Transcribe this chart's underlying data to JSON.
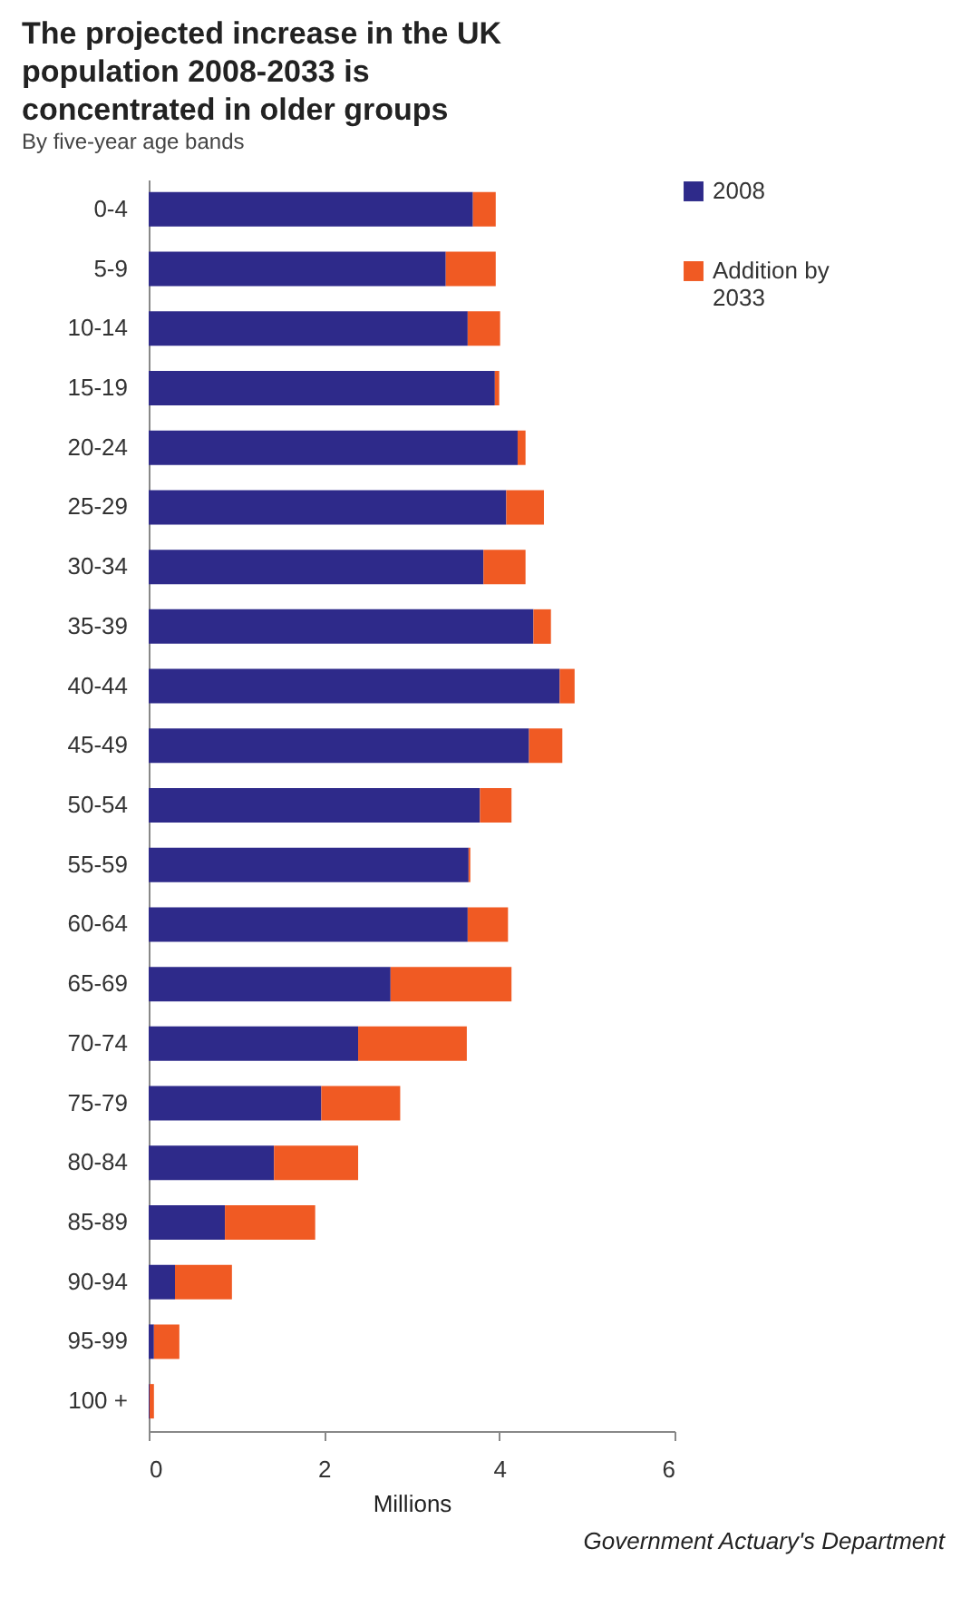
{
  "chart_data": {
    "type": "bar",
    "orientation": "horizontal",
    "stacked": true,
    "title": "The projected increase in the UK population  2008-2033 is concentrated in older groups",
    "subtitle": "By five-year age bands",
    "xlabel": "Millions",
    "categories": [
      "0-4",
      "5-9",
      "10-14",
      "15-19",
      "20-24",
      "25-29",
      "30-34",
      "35-39",
      "40-44",
      "45-49",
      "50-54",
      "55-59",
      "60-64",
      "65-69",
      "70-74",
      "75-79",
      "80-84",
      "85-89",
      "90-94",
      "95-99",
      "100 +"
    ],
    "series": [
      {
        "name": "2008",
        "color": "#2e2a8a",
        "values": [
          3.7,
          3.39,
          3.64,
          3.95,
          4.21,
          4.08,
          3.82,
          4.39,
          4.69,
          4.34,
          3.78,
          3.65,
          3.64,
          2.76,
          2.39,
          1.97,
          1.43,
          0.87,
          0.3,
          0.06,
          0.01
        ]
      },
      {
        "name": "Addition by 2033",
        "color": "#f05a23",
        "values": [
          0.26,
          0.57,
          0.37,
          0.05,
          0.09,
          0.43,
          0.48,
          0.2,
          0.17,
          0.38,
          0.36,
          0.02,
          0.46,
          1.38,
          1.24,
          0.9,
          0.96,
          1.03,
          0.65,
          0.29,
          0.05
        ]
      }
    ],
    "xlim": [
      0,
      6
    ],
    "xticks": [
      0,
      2,
      4,
      6
    ],
    "grid": false,
    "legend": "right",
    "annotations": [
      "Government Actuary's Department"
    ]
  }
}
